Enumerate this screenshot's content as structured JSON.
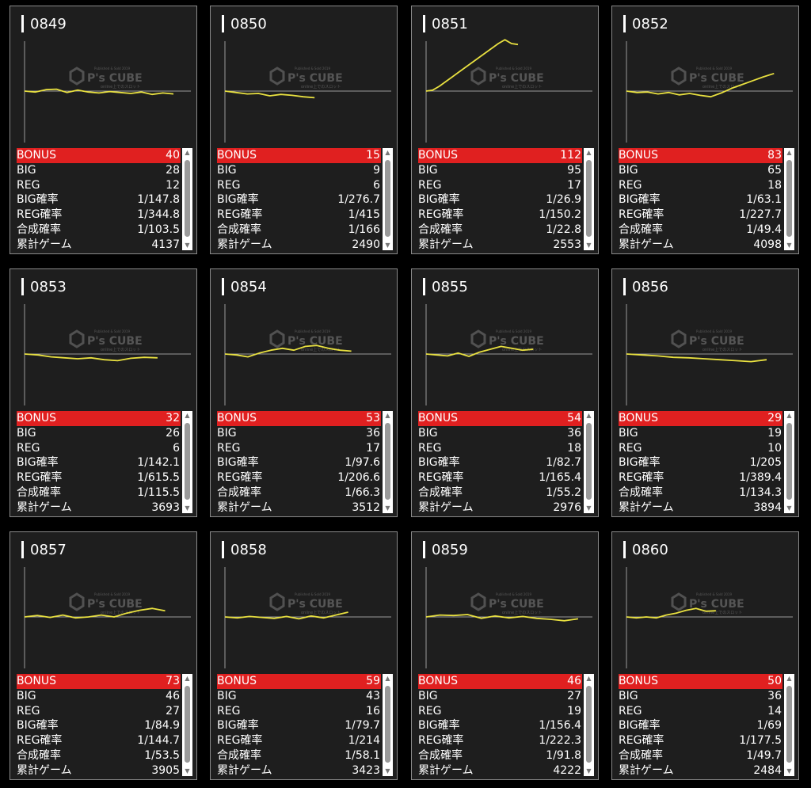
{
  "labels": {
    "bonus": "BONUS",
    "big": "BIG",
    "reg": "REG",
    "big_rate": "BIG確率",
    "reg_rate": "REG確率",
    "combined_rate": "合成確率",
    "total_games": "累計ゲーム"
  },
  "watermark": {
    "brand": "P's CUBE",
    "top_text": "Published & Sold 2019",
    "bottom_text": "online上でのスロット"
  },
  "colors": {
    "background": "#000000",
    "card": "#1e1e1e",
    "bonus_row": "#e02020",
    "graph_line": "#e8e040",
    "axis": "#9a9a9a"
  },
  "icons": {
    "scroll_up": "triangle-up-icon",
    "scroll_down": "triangle-down-icon"
  },
  "machines": [
    {
      "number": "0849",
      "bonus": "40",
      "big": "28",
      "reg": "12",
      "big_rate": "1/147.8",
      "reg_rate": "1/344.8",
      "combined_rate": "1/103.5",
      "total_games": "4137",
      "trend": [
        0,
        -2,
        3,
        4,
        -3,
        2,
        -2,
        -4,
        -1,
        -3,
        -5,
        -2,
        -7,
        -4,
        -6
      ]
    },
    {
      "number": "0850",
      "bonus": "15",
      "big": "9",
      "reg": "6",
      "big_rate": "1/276.7",
      "reg_rate": "1/415",
      "combined_rate": "1/166",
      "total_games": "2490",
      "trend": [
        0,
        -3,
        -6,
        -5,
        -10,
        -7,
        -9,
        -12,
        -14
      ]
    },
    {
      "number": "0851",
      "bonus": "112",
      "big": "95",
      "reg": "17",
      "big_rate": "1/26.9",
      "reg_rate": "1/150.2",
      "combined_rate": "1/22.8",
      "total_games": "2553",
      "trend": [
        0,
        2,
        10,
        20,
        30,
        40,
        50,
        60,
        70,
        80,
        90,
        100,
        108,
        100,
        98
      ]
    },
    {
      "number": "0852",
      "bonus": "83",
      "big": "65",
      "reg": "18",
      "big_rate": "1/63.1",
      "reg_rate": "1/227.7",
      "combined_rate": "1/49.4",
      "total_games": "4098",
      "trend": [
        0,
        -3,
        -2,
        -6,
        -3,
        -8,
        -5,
        -9,
        -12,
        -4,
        6,
        14,
        22,
        30,
        37
      ]
    },
    {
      "number": "0853",
      "bonus": "32",
      "big": "26",
      "reg": "6",
      "big_rate": "1/142.1",
      "reg_rate": "1/615.5",
      "combined_rate": "1/115.5",
      "total_games": "3693",
      "trend": [
        0,
        -2,
        -6,
        -8,
        -10,
        -8,
        -12,
        -14,
        -9,
        -7,
        -8
      ]
    },
    {
      "number": "0854",
      "bonus": "53",
      "big": "36",
      "reg": "17",
      "big_rate": "1/97.6",
      "reg_rate": "1/206.6",
      "combined_rate": "1/66.3",
      "total_games": "3512",
      "trend": [
        0,
        -2,
        -6,
        2,
        8,
        12,
        8,
        16,
        18,
        12,
        8,
        6
      ]
    },
    {
      "number": "0855",
      "bonus": "54",
      "big": "36",
      "reg": "18",
      "big_rate": "1/82.7",
      "reg_rate": "1/165.4",
      "combined_rate": "1/55.2",
      "total_games": "2976",
      "trend": [
        0,
        -2,
        -4,
        2,
        -5,
        4,
        10,
        16,
        12,
        8,
        10
      ]
    },
    {
      "number": "0856",
      "bonus": "29",
      "big": "19",
      "reg": "10",
      "big_rate": "1/205",
      "reg_rate": "1/389.4",
      "combined_rate": "1/134.3",
      "total_games": "3894",
      "trend": [
        0,
        -2,
        -4,
        -7,
        -8,
        -10,
        -12,
        -14,
        -16,
        -12
      ]
    },
    {
      "number": "0857",
      "bonus": "73",
      "big": "46",
      "reg": "27",
      "big_rate": "1/84.9",
      "reg_rate": "1/144.7",
      "combined_rate": "1/53.5",
      "total_games": "3905",
      "trend": [
        0,
        3,
        -1,
        4,
        -2,
        0,
        4,
        0,
        8,
        14,
        18,
        13
      ]
    },
    {
      "number": "0858",
      "bonus": "59",
      "big": "43",
      "reg": "16",
      "big_rate": "1/79.7",
      "reg_rate": "1/214",
      "combined_rate": "1/58.1",
      "total_games": "3423",
      "trend": [
        0,
        -2,
        1,
        -1,
        -3,
        1,
        -4,
        2,
        -2,
        4,
        10
      ]
    },
    {
      "number": "0859",
      "bonus": "46",
      "big": "27",
      "reg": "19",
      "big_rate": "1/156.4",
      "reg_rate": "1/222.3",
      "combined_rate": "1/91.8",
      "total_games": "4222",
      "trend": [
        0,
        4,
        3,
        5,
        -3,
        2,
        -2,
        1,
        -3,
        -5,
        -8,
        -4
      ]
    },
    {
      "number": "0860",
      "bonus": "50",
      "big": "36",
      "reg": "14",
      "big_rate": "1/69",
      "reg_rate": "1/177.5",
      "combined_rate": "1/49.7",
      "total_games": "2484",
      "trend": [
        0,
        -2,
        0,
        -2,
        4,
        8,
        14,
        18,
        12,
        13
      ]
    }
  ]
}
